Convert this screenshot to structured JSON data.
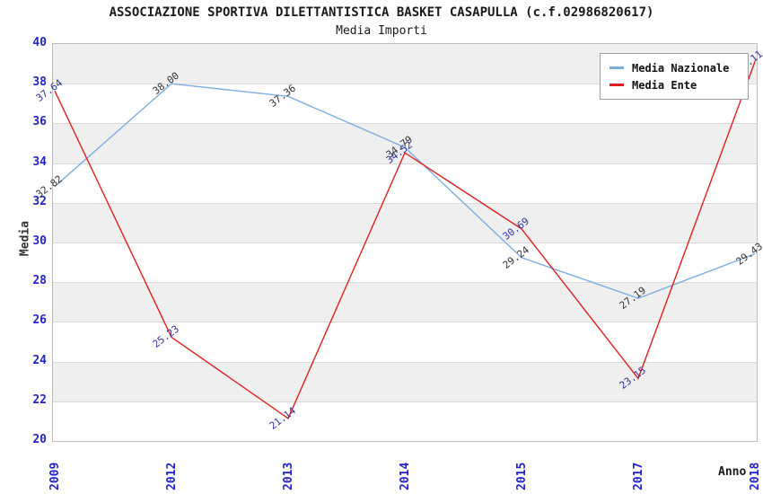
{
  "title": "ASSOCIAZIONE SPORTIVA DILETTANTISTICA BASKET CASAPULLA (c.f.02986820617)",
  "subtitle": "Media Importi",
  "chart_data": {
    "type": "line",
    "title": "ASSOCIAZIONE SPORTIVA DILETTANTISTICA BASKET CASAPULLA (c.f.02986820617)",
    "subtitle": "Media Importi",
    "xlabel": "Anno",
    "ylabel": "Media",
    "categories": [
      "2009",
      "2012",
      "2013",
      "2014",
      "2015",
      "2017",
      "2018"
    ],
    "series": [
      {
        "name": "Media Nazionale",
        "color": "#7caee2",
        "label_color": "#333333",
        "values": [
          32.82,
          38.0,
          37.36,
          34.79,
          29.24,
          27.19,
          29.43
        ]
      },
      {
        "name": "Media Ente",
        "color": "#e01f1f",
        "label_color": "#333399",
        "values": [
          37.64,
          25.23,
          21.14,
          34.52,
          30.69,
          23.15,
          39.11
        ]
      }
    ],
    "ylim": [
      20,
      40
    ],
    "ytick_step": 2,
    "grid": true,
    "band_fill": "#efefef",
    "tick_label_color": "#2323cc",
    "legend_position": "top-right"
  }
}
